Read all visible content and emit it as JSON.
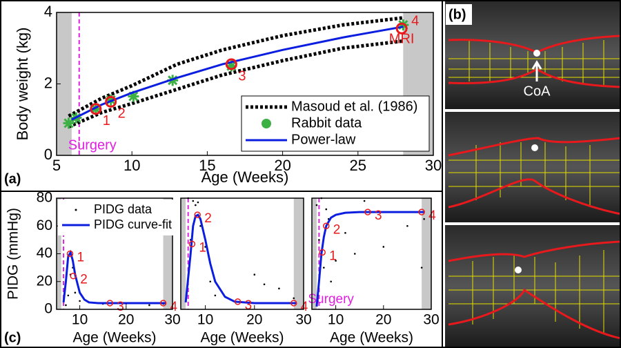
{
  "chart_data": [
    {
      "type": "line",
      "panel": "(a)",
      "xlabel": "Age (Weeks)",
      "ylabel": "Body weight (kg)",
      "xlim": [
        5,
        30
      ],
      "xticks": [
        5,
        10,
        15,
        20,
        25,
        30
      ],
      "ylim": [
        0,
        4
      ],
      "yticks": [
        0,
        2,
        4
      ],
      "shade": [
        [
          5,
          6
        ],
        [
          28,
          30
        ]
      ],
      "surgery": {
        "x": 6.5,
        "label": "Surgery"
      },
      "legend": "lower right",
      "marker_color": "#e8191c",
      "series": [
        {
          "name": "Masoud et al. (1986)",
          "style": "dotted",
          "color": "#000000",
          "x": [
            5.8,
            8,
            10,
            13,
            16,
            20,
            24,
            28
          ],
          "values": [
            1.1,
            1.6,
            1.95,
            2.55,
            2.95,
            3.35,
            3.65,
            3.85
          ]
        },
        {
          "style": "dotted",
          "color": "#000000",
          "x": [
            5.8,
            8,
            10,
            13,
            16,
            20,
            24,
            28
          ],
          "values": [
            0.8,
            1.2,
            1.45,
            1.85,
            2.25,
            2.65,
            3.0,
            3.2
          ]
        },
        {
          "name": "Rabbit data",
          "style": "asterisk",
          "color": "#3cb043",
          "x": [
            5.8,
            6.3,
            7.6,
            8.6,
            10.1,
            12.7,
            16.6,
            28
          ],
          "values": [
            0.9,
            1.05,
            1.3,
            1.55,
            1.65,
            2.1,
            2.5,
            3.65
          ]
        },
        {
          "name": "Power-law",
          "style": "solid",
          "color": "#0b1ee0",
          "x": [
            6,
            8,
            10,
            13,
            16,
            20,
            24,
            28
          ],
          "values": [
            1.0,
            1.42,
            1.75,
            2.17,
            2.55,
            2.95,
            3.3,
            3.6
          ]
        }
      ],
      "markers": [
        {
          "label": "1",
          "x": 7.6,
          "y": 1.3
        },
        {
          "label": "2",
          "x": 8.6,
          "y": 1.5
        },
        {
          "label": "3",
          "x": 16.6,
          "y": 2.55
        },
        {
          "label": "4",
          "note": "MRI",
          "x": 27.9,
          "y": 3.55
        }
      ]
    },
    {
      "type": "line",
      "panel": "(c)",
      "xlabel": "Age (Weeks)",
      "ylabel": "PIDG (mmHg)",
      "xlim": [
        5,
        30
      ],
      "xticks": [
        10,
        20,
        30
      ],
      "ylim": [
        0,
        80
      ],
      "yticks": [
        0,
        20,
        40,
        60,
        80
      ],
      "shade": [
        [
          5,
          6
        ],
        [
          28,
          30
        ]
      ],
      "surgery": {
        "x": 6.5
      },
      "legend": "upper left",
      "marker_color": "#e8191c",
      "series": [
        {
          "name": "PIDG data",
          "style": "dot",
          "color": "#000000",
          "x": [
            7,
            7.5,
            8,
            8.5,
            9,
            10,
            12,
            15,
            20,
            25,
            28
          ],
          "values": [
            3,
            10,
            25,
            30,
            12,
            6,
            5,
            4,
            4,
            3,
            4
          ]
        },
        {
          "name": "PIDG curve-fit",
          "style": "solid",
          "color": "#0b1ee0",
          "x": [
            6.5,
            7,
            7.5,
            8,
            8.5,
            9,
            10,
            11,
            12,
            14,
            20,
            28.5
          ],
          "values": [
            5,
            20,
            38,
            41,
            35,
            25,
            12,
            7,
            5,
            4.5,
            4.5,
            4.5
          ]
        }
      ],
      "markers": [
        {
          "label": "1",
          "x": 7.9,
          "y": 40
        },
        {
          "label": "2",
          "x": 8.6,
          "y": 24
        },
        {
          "label": "3",
          "x": 16.5,
          "y": 4.5
        },
        {
          "label": "4",
          "x": 28,
          "y": 4.5
        }
      ]
    },
    {
      "type": "line",
      "xlabel": "Age (Weeks)",
      "xlim": [
        5,
        30
      ],
      "xticks": [
        10,
        20,
        30
      ],
      "ylim": [
        0,
        80
      ],
      "shade": [
        [
          5,
          6
        ],
        [
          28,
          30
        ]
      ],
      "surgery": {
        "x": 6.5
      },
      "marker_color": "#e8191c",
      "series": [
        {
          "style": "dot",
          "color": "#000000",
          "x": [
            6.5,
            7,
            7.5,
            8,
            8.5,
            9,
            10,
            11,
            12,
            20,
            22,
            25,
            28
          ],
          "values": [
            80,
            50,
            78,
            75,
            77,
            60,
            45,
            20,
            10,
            25,
            18,
            15,
            8
          ]
        },
        {
          "style": "solid",
          "color": "#0b1ee0",
          "x": [
            6,
            7,
            7.5,
            8,
            8.5,
            9,
            10,
            11,
            12,
            14,
            16,
            20,
            28.5
          ],
          "values": [
            5,
            40,
            60,
            67,
            68,
            65,
            50,
            33,
            20,
            9,
            5.5,
            4.5,
            4.5
          ]
        }
      ],
      "markers": [
        {
          "label": "1",
          "x": 7.3,
          "y": 47
        },
        {
          "label": "2",
          "x": 8.4,
          "y": 68
        },
        {
          "label": "3",
          "x": 16.6,
          "y": 5.5
        },
        {
          "label": "4",
          "x": 28,
          "y": 4.5
        }
      ]
    },
    {
      "type": "line",
      "xlabel": "Age (Weeks)",
      "xlim": [
        5,
        30
      ],
      "xticks": [
        10,
        20,
        30
      ],
      "ylim": [
        0,
        80
      ],
      "shade": [
        [
          5,
          6
        ],
        [
          28,
          30
        ]
      ],
      "surgery": {
        "x": 6.5,
        "label": "Surgery"
      },
      "marker_color": "#e8191c",
      "series": [
        {
          "style": "dot",
          "color": "#000000",
          "x": [
            6,
            6.5,
            7,
            7.5,
            8,
            8.5,
            9,
            10,
            12,
            14,
            16,
            20,
            25,
            28,
            28.5
          ],
          "values": [
            75,
            50,
            80,
            30,
            72,
            65,
            20,
            35,
            55,
            40,
            78,
            45,
            60,
            30,
            65
          ]
        },
        {
          "style": "solid",
          "color": "#0b1ee0",
          "x": [
            6,
            6.5,
            7,
            7.5,
            8,
            9,
            10,
            12,
            15,
            20,
            28.5
          ],
          "values": [
            2,
            20,
            40,
            52,
            60,
            66,
            68,
            69.5,
            70,
            70,
            70
          ]
        }
      ],
      "markers": [
        {
          "label": "1",
          "x": 7.2,
          "y": 41
        },
        {
          "label": "2",
          "x": 8,
          "y": 60
        },
        {
          "label": "3",
          "x": 16.7,
          "y": 70
        },
        {
          "label": "4",
          "x": 28,
          "y": 70
        }
      ]
    }
  ],
  "image_panel": {
    "label": "(b)",
    "annotation": "CoA"
  }
}
